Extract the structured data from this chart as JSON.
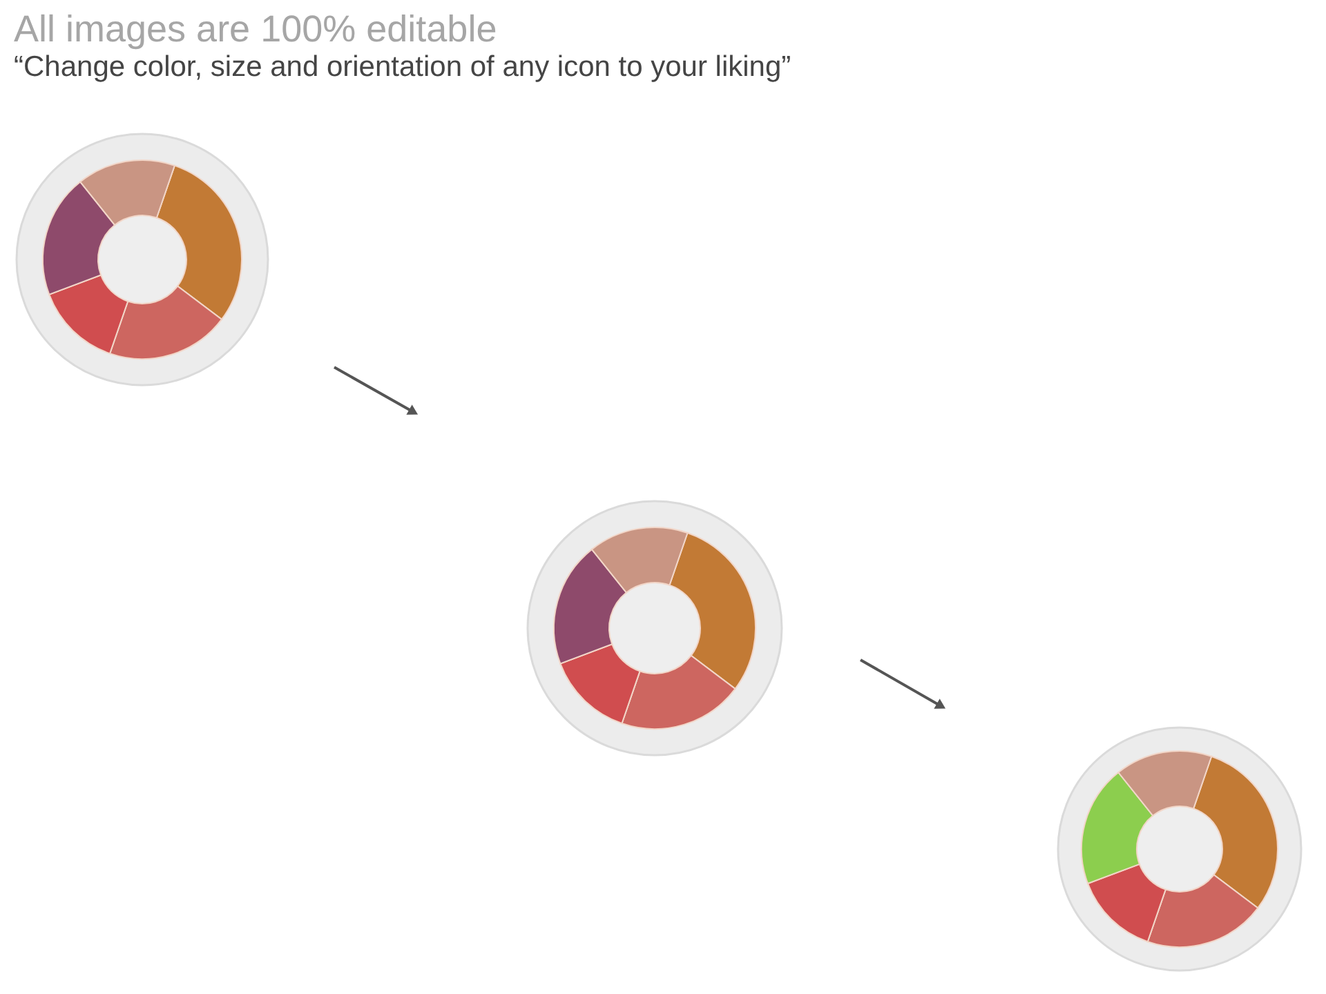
{
  "chart_data": [
    {
      "type": "donut",
      "title": "All images are 100% editable",
      "subtitle": "“Change color, size and orientation of any icon to your liking”",
      "categories": [
        null,
        null,
        null,
        null,
        null
      ],
      "values": [
        30,
        20,
        14,
        20,
        16
      ],
      "colors": [
        "#c27a35",
        "#cd6660",
        "#d04d4f",
        "#8e4a6b",
        "#c99583"
      ]
    },
    {
      "type": "donut",
      "categories": [
        null,
        null,
        null,
        null,
        null
      ],
      "values": [
        30,
        20,
        14,
        20,
        16
      ],
      "colors": [
        "#c27a35",
        "#cd6660",
        "#d04d4f",
        "#8e4a6b",
        "#c99583"
      ]
    },
    {
      "type": "donut",
      "categories": [
        null,
        null,
        null,
        null,
        null
      ],
      "values": [
        30,
        20,
        14,
        20,
        16
      ],
      "colors": [
        "#c27a35",
        "#cd6660",
        "#d04d4f",
        "#8cce4e",
        "#c99583"
      ]
    }
  ]
}
